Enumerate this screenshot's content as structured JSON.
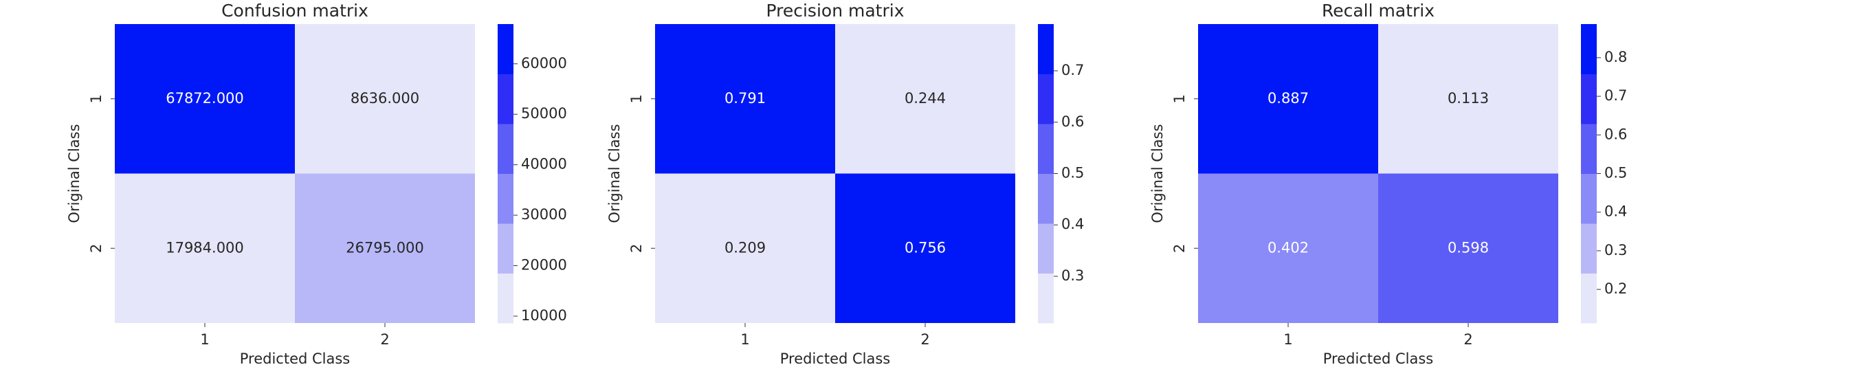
{
  "chart_data": [
    {
      "type": "heatmap",
      "title": "Confusion matrix",
      "xlabel": "Predicted Class",
      "ylabel": "Original Class",
      "x": [
        "1",
        "2"
      ],
      "y": [
        "1",
        "2"
      ],
      "values": [
        [
          67872,
          8636
        ],
        [
          17984,
          26795
        ]
      ],
      "value_labels": [
        [
          "67872.000",
          "8636.000"
        ],
        [
          "17984.000",
          "26795.000"
        ]
      ],
      "clim": [
        8636,
        67872
      ],
      "cticks": [
        10000,
        20000,
        30000,
        40000,
        50000,
        60000
      ],
      "colors": [
        "#e6e6fa",
        "#b8b8f9",
        "#8a8af8",
        "#5c5cf7",
        "#2e2ef6",
        "#0018f7"
      ]
    },
    {
      "type": "heatmap",
      "title": "Precision matrix",
      "xlabel": "Predicted Class",
      "ylabel": "Original Class",
      "x": [
        "1",
        "2"
      ],
      "y": [
        "1",
        "2"
      ],
      "values": [
        [
          0.791,
          0.244
        ],
        [
          0.209,
          0.756
        ]
      ],
      "clim": [
        0.209,
        0.791
      ],
      "cticks": [
        0.3,
        0.4,
        0.5,
        0.6,
        0.7
      ],
      "colors": [
        "#e6e6fa",
        "#b8b8f9",
        "#8a8af8",
        "#5c5cf7",
        "#2e2ef6",
        "#0018f7"
      ]
    },
    {
      "type": "heatmap",
      "title": "Recall matrix",
      "xlabel": "Predicted Class",
      "ylabel": "Original Class",
      "x": [
        "1",
        "2"
      ],
      "y": [
        "1",
        "2"
      ],
      "values": [
        [
          0.887,
          0.113
        ],
        [
          0.402,
          0.598
        ]
      ],
      "clim": [
        0.113,
        0.887
      ],
      "cticks": [
        0.2,
        0.3,
        0.4,
        0.5,
        0.6,
        0.7,
        0.8
      ],
      "colors": [
        "#e6e6fa",
        "#b8b8f9",
        "#8a8af8",
        "#5c5cf7",
        "#2e2ef6",
        "#0018f7"
      ]
    }
  ]
}
